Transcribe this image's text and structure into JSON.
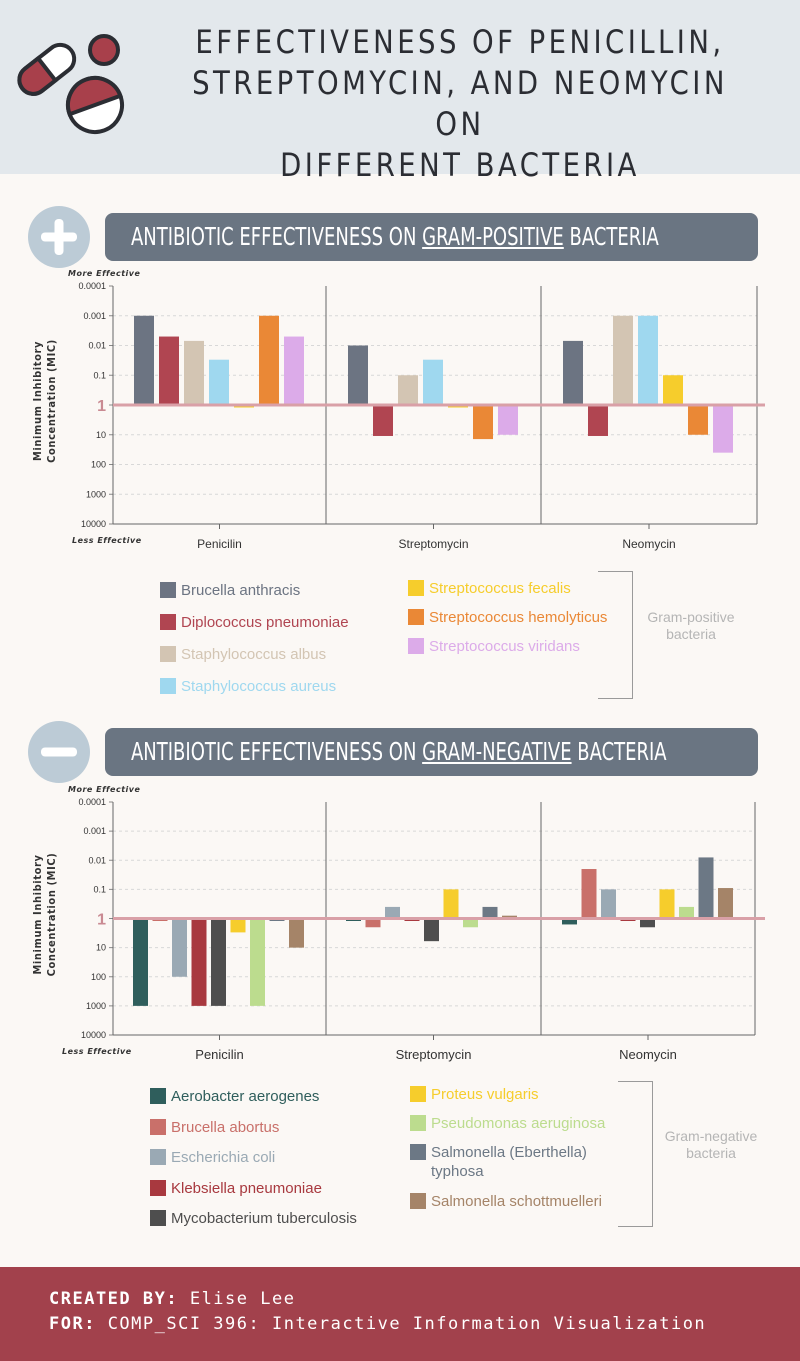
{
  "header": {
    "title_line1": "EFFECTIVENESS OF PENICILLIN,",
    "title_line2": "STREPTOMYCIN, AND NEOMYCIN ON",
    "title_line3": "DIFFERENT BACTERIA"
  },
  "sections": [
    {
      "banner_prefix": "ANTIBIOTIC EFFECTIVENESS ON ",
      "banner_highlight": "GRAM-POSITIVE",
      "banner_suffix": " BACTERIA",
      "group_note_line1": "Gram-positive",
      "group_note_line2": "bacteria"
    },
    {
      "banner_prefix": "ANTIBIOTIC EFFECTIVENESS ON ",
      "banner_highlight": "GRAM-NEGATIVE",
      "banner_suffix": " BACTERIA",
      "group_note_line1": "Gram-negative",
      "group_note_line2": "bacteria"
    }
  ],
  "chart_data": [
    {
      "type": "bar",
      "title": "ANTIBIOTIC EFFECTIVENESS ON GRAM-POSITIVE BACTERIA",
      "ylabel": "Minimum Inhibitory Concentration (MIC)",
      "y_scale": "log-inverted",
      "y_ticks": [
        "0.0001",
        "0.001",
        "0.01",
        "0.1",
        "1",
        "10",
        "100",
        "1000",
        "10000"
      ],
      "y_top_note": "More Effective",
      "y_bottom_note": "Less Effective",
      "baseline": 1,
      "grid": true,
      "categories": [
        "Penicilin",
        "Streptomycin",
        "Neomycin"
      ],
      "series": [
        {
          "name": "Brucella anthracis",
          "color": "#6c7482",
          "values": [
            0.001,
            0.01,
            0.007
          ]
        },
        {
          "name": "Diplococcus pneumoniae",
          "color": "#b04551",
          "values": [
            0.005,
            11,
            11
          ]
        },
        {
          "name": "Staphylococcus albus",
          "color": "#d3c5b3",
          "values": [
            0.007,
            0.1,
            0.001
          ]
        },
        {
          "name": "Staphylococcus aureus",
          "color": "#9fd8ef",
          "values": [
            0.03,
            0.03,
            0.001
          ]
        },
        {
          "name": "Streptococcus fecalis",
          "color": "#f6cd2c",
          "values": [
            1.2,
            1.2,
            0.1
          ]
        },
        {
          "name": "Streptococcus hemolyticus",
          "color": "#ea8836",
          "values": [
            0.001,
            14,
            10
          ]
        },
        {
          "name": "Streptococcus viridans",
          "color": "#dcabe9",
          "values": [
            0.005,
            10,
            40
          ]
        }
      ]
    },
    {
      "type": "bar",
      "title": "ANTIBIOTIC EFFECTIVENESS ON GRAM-NEGATIVE BACTERIA",
      "ylabel": "Minimum Inhibitory Concentration (MIC)",
      "y_scale": "log-inverted",
      "y_ticks": [
        "0.0001",
        "0.001",
        "0.01",
        "0.1",
        "1",
        "10",
        "100",
        "1000",
        "10000"
      ],
      "y_top_note": "More Effective",
      "y_bottom_note": "Less Effective",
      "baseline": 1,
      "grid": true,
      "categories": [
        "Penicilin",
        "Streptomycin",
        "Neomycin"
      ],
      "series": [
        {
          "name": "Aerobacter aerogenes",
          "color": "#2f5e5c",
          "values": [
            1000,
            1.2,
            1.6
          ]
        },
        {
          "name": "Brucella abortus",
          "color": "#c9706a",
          "values": [
            1.1,
            2,
            0.02
          ]
        },
        {
          "name": "Escherichia coli",
          "color": "#9aa9b4",
          "values": [
            100,
            0.4,
            0.1
          ]
        },
        {
          "name": "Klebsiella pneumoniae",
          "color": "#a8393f",
          "values": [
            1000,
            1.2,
            1.1
          ]
        },
        {
          "name": "Mycobacterium tuberculosis",
          "color": "#4e4e4e",
          "values": [
            1000,
            6,
            2
          ]
        },
        {
          "name": "Proteus vulgaris",
          "color": "#f6cd2c",
          "values": [
            3,
            0.1,
            0.1
          ]
        },
        {
          "name": "Pseudomonas aeruginosa",
          "color": "#bcdc8e",
          "values": [
            1000,
            2,
            0.4
          ]
        },
        {
          "name": "Salmonella (Eberthella) typhosa",
          "color": "#6c7885",
          "values": [
            1.1,
            0.4,
            0.008
          ]
        },
        {
          "name": "Salmonella schottmuelleri",
          "color": "#a58468",
          "values": [
            10,
            0.8,
            0.09
          ]
        }
      ]
    }
  ],
  "legends": [
    {
      "left": [
        {
          "label": "Brucella anthracis",
          "color": "#6c7482"
        },
        {
          "label": "Diplococcus pneumoniae",
          "color": "#b04551"
        },
        {
          "label": "Staphylococcus albus",
          "color": "#d3c5b3"
        },
        {
          "label": "Staphylococcus aureus",
          "color": "#9fd8ef"
        }
      ],
      "right": [
        {
          "label": "Streptococcus fecalis",
          "color": "#f6cd2c"
        },
        {
          "label": "Streptococcus hemolyticus",
          "color": "#ea8836"
        },
        {
          "label": "Streptococcus viridans",
          "color": "#dcabe9"
        }
      ]
    },
    {
      "left": [
        {
          "label": "Aerobacter aerogenes",
          "color": "#2f5e5c"
        },
        {
          "label": "Brucella abortus",
          "color": "#c9706a"
        },
        {
          "label": "Escherichia coli",
          "color": "#9aa9b4"
        },
        {
          "label": "Klebsiella pneumoniae",
          "color": "#a8393f"
        },
        {
          "label": "Mycobacterium tuberculosis",
          "color": "#4e4e4e"
        }
      ],
      "right": [
        {
          "label": "Proteus vulgaris",
          "color": "#f6cd2c"
        },
        {
          "label": "Pseudomonas aeruginosa",
          "color": "#bcdc8e"
        },
        {
          "label": "Salmonella (Eberthella)",
          "label2": "typhosa",
          "color": "#6c7885"
        },
        {
          "label": "Salmonella schottmuelleri",
          "color": "#a58468"
        }
      ]
    }
  ],
  "footer": {
    "created_label": "CREATED BY:",
    "created_value": " Elise Lee",
    "for_label": "FOR:",
    "for_value": " COMP_SCI 396: Interactive Information Visualization"
  }
}
